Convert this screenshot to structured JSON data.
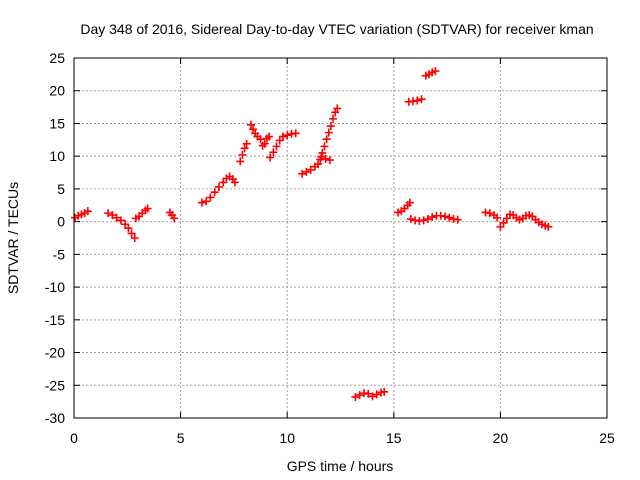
{
  "chart_data": {
    "type": "scatter",
    "title": "Day 348 of 2016, Sidereal Day-to-day VTEC variation (SDTVAR) for receiver kman",
    "xlabel": "GPS time / hours",
    "ylabel": "SDTVAR / TECUs",
    "xlim": [
      0,
      25
    ],
    "ylim": [
      -30,
      25
    ],
    "xticks": [
      0,
      5,
      10,
      15,
      20,
      25
    ],
    "yticks": [
      25,
      20,
      15,
      10,
      5,
      0,
      -5,
      -10,
      -15,
      -20,
      -25,
      -30
    ],
    "grid": true,
    "marker": "plus",
    "marker_color": "#ff0000",
    "series": [
      {
        "name": "SDTVAR",
        "points": [
          [
            0.05,
            0.6
          ],
          [
            0.2,
            0.9
          ],
          [
            0.35,
            1.1
          ],
          [
            0.5,
            1.3
          ],
          [
            0.65,
            1.6
          ],
          [
            1.6,
            1.3
          ],
          [
            1.8,
            1.0
          ],
          [
            2.0,
            0.6
          ],
          [
            2.2,
            0.2
          ],
          [
            2.4,
            -0.4
          ],
          [
            2.55,
            -1.0
          ],
          [
            2.7,
            -1.8
          ],
          [
            2.85,
            -2.5
          ],
          [
            2.9,
            0.5
          ],
          [
            3.05,
            0.8
          ],
          [
            3.2,
            1.3
          ],
          [
            3.35,
            1.7
          ],
          [
            3.45,
            2.0
          ],
          [
            4.5,
            1.4
          ],
          [
            4.6,
            1.0
          ],
          [
            4.7,
            0.5
          ],
          [
            6.0,
            2.9
          ],
          [
            6.2,
            3.1
          ],
          [
            6.4,
            3.7
          ],
          [
            6.6,
            4.5
          ],
          [
            6.8,
            5.3
          ],
          [
            7.0,
            6.0
          ],
          [
            7.15,
            6.6
          ],
          [
            7.3,
            6.9
          ],
          [
            7.45,
            6.5
          ],
          [
            7.55,
            6.0
          ],
          [
            7.8,
            9.2
          ],
          [
            7.9,
            10.2
          ],
          [
            8.0,
            11.2
          ],
          [
            8.1,
            11.9
          ],
          [
            8.3,
            14.8
          ],
          [
            8.4,
            14.1
          ],
          [
            8.5,
            13.5
          ],
          [
            8.6,
            13.0
          ],
          [
            8.75,
            12.6
          ],
          [
            8.85,
            11.6
          ],
          [
            8.95,
            11.9
          ],
          [
            9.05,
            12.7
          ],
          [
            9.15,
            13.0
          ],
          [
            9.2,
            9.8
          ],
          [
            9.35,
            10.6
          ],
          [
            9.5,
            11.5
          ],
          [
            9.65,
            12.4
          ],
          [
            9.8,
            13.0
          ],
          [
            10.0,
            13.2
          ],
          [
            10.2,
            13.4
          ],
          [
            10.4,
            13.5
          ],
          [
            10.7,
            7.3
          ],
          [
            10.9,
            7.6
          ],
          [
            11.1,
            7.9
          ],
          [
            11.3,
            8.4
          ],
          [
            11.45,
            8.8
          ],
          [
            11.55,
            9.5
          ],
          [
            11.65,
            10.5
          ],
          [
            11.75,
            11.5
          ],
          [
            11.85,
            12.6
          ],
          [
            11.95,
            13.6
          ],
          [
            12.05,
            14.6
          ],
          [
            12.15,
            15.7
          ],
          [
            12.25,
            16.7
          ],
          [
            12.35,
            17.3
          ],
          [
            11.6,
            9.9
          ],
          [
            11.8,
            9.6
          ],
          [
            12.0,
            9.4
          ],
          [
            13.2,
            -26.8
          ],
          [
            13.4,
            -26.5
          ],
          [
            13.6,
            -26.2
          ],
          [
            13.8,
            -26.3
          ],
          [
            14.0,
            -26.7
          ],
          [
            14.2,
            -26.4
          ],
          [
            14.4,
            -26.1
          ],
          [
            14.55,
            -26.0
          ],
          [
            15.2,
            1.4
          ],
          [
            15.35,
            1.6
          ],
          [
            15.5,
            2.0
          ],
          [
            15.65,
            2.5
          ],
          [
            15.75,
            2.9
          ],
          [
            15.7,
            18.3
          ],
          [
            15.9,
            18.4
          ],
          [
            16.1,
            18.5
          ],
          [
            16.3,
            18.7
          ],
          [
            16.5,
            22.3
          ],
          [
            16.65,
            22.5
          ],
          [
            16.8,
            22.8
          ],
          [
            16.95,
            23.0
          ],
          [
            15.8,
            0.4
          ],
          [
            16.0,
            0.2
          ],
          [
            16.2,
            0.1
          ],
          [
            16.4,
            0.2
          ],
          [
            16.6,
            0.4
          ],
          [
            16.8,
            0.7
          ],
          [
            17.0,
            0.9
          ],
          [
            17.2,
            0.9
          ],
          [
            17.4,
            0.8
          ],
          [
            17.6,
            0.6
          ],
          [
            17.8,
            0.4
          ],
          [
            18.0,
            0.3
          ],
          [
            19.3,
            1.4
          ],
          [
            19.5,
            1.3
          ],
          [
            19.7,
            1.0
          ],
          [
            19.85,
            0.6
          ],
          [
            20.0,
            -0.8
          ],
          [
            20.15,
            -0.2
          ],
          [
            20.3,
            0.5
          ],
          [
            20.45,
            1.1
          ],
          [
            20.6,
            1.0
          ],
          [
            20.75,
            0.6
          ],
          [
            20.9,
            0.3
          ],
          [
            21.05,
            0.5
          ],
          [
            21.2,
            0.9
          ],
          [
            21.35,
            1.0
          ],
          [
            21.5,
            0.8
          ],
          [
            21.65,
            0.3
          ],
          [
            21.8,
            -0.1
          ],
          [
            21.95,
            -0.4
          ],
          [
            22.1,
            -0.6
          ],
          [
            22.25,
            -0.8
          ]
        ]
      }
    ]
  }
}
